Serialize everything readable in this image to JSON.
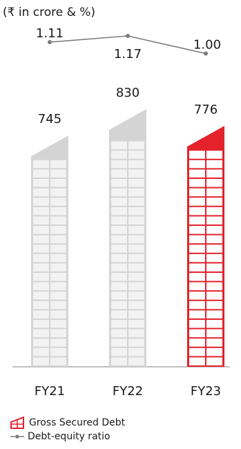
{
  "unit_label": "(₹ in crore & %)",
  "colors": {
    "bar_default": "#d4d4d4",
    "bar_default_window": "#f2f2f2",
    "bar_highlight": "#e3222b",
    "bar_highlight_window": "#ffffff",
    "line": "#7a7a7a",
    "axis": "#9a9a9a"
  },
  "chart_data": {
    "type": "bar",
    "categories": [
      "FY21",
      "FY22",
      "FY23"
    ],
    "series": [
      {
        "name": "Gross Secured Debt",
        "values": [
          745,
          830,
          776
        ],
        "value_labels": [
          "745",
          "830",
          "776"
        ],
        "highlight_index": 2
      },
      {
        "name": "Debt-equity ratio",
        "type": "line",
        "values": [
          1.11,
          1.17,
          1.0
        ],
        "value_labels": [
          "1.11",
          "1.17",
          "1.00"
        ]
      }
    ],
    "ylim": [
      0,
      830
    ]
  },
  "legend": [
    {
      "label": "Gross Secured Debt",
      "icon": "building-icon"
    },
    {
      "label": "Debt-equity ratio",
      "icon": "line-marker-icon"
    }
  ]
}
